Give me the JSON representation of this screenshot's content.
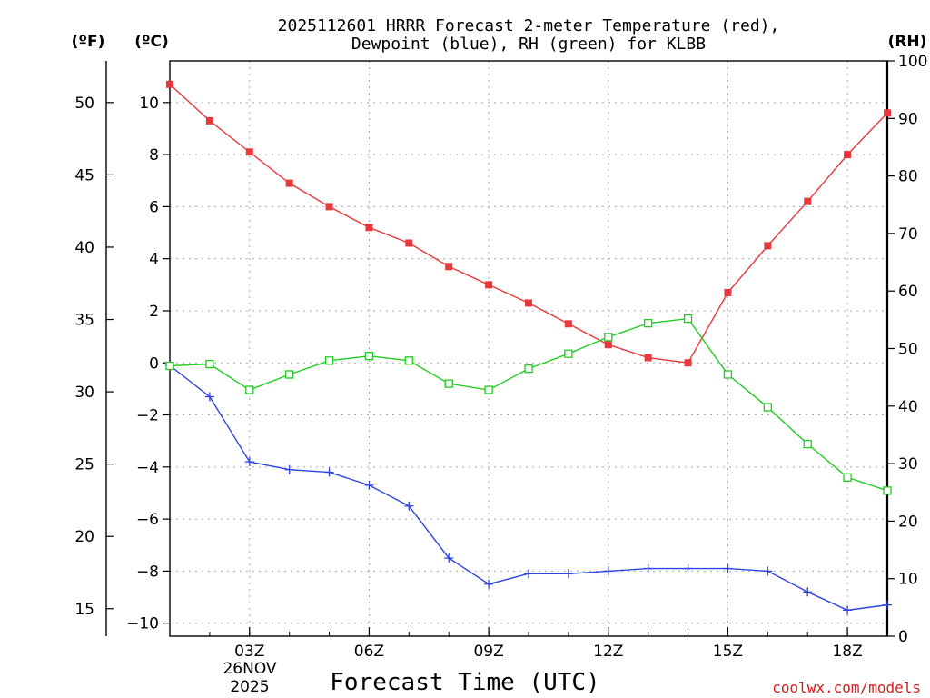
{
  "chart_data": {
    "type": "line",
    "title_line1": "2025112601 HRRR Forecast 2-meter Temperature (red),",
    "title_line2": "Dewpoint (blue), RH (green) for KLBB",
    "units": {
      "fahrenheit": "(ºF)",
      "celsius": "(ºC)",
      "rh": "(RH)"
    },
    "xlabel": "Forecast Time (UTC)",
    "credit": "coolwx.com/models",
    "x_hours": [
      1,
      2,
      3,
      4,
      5,
      6,
      7,
      8,
      9,
      10,
      11,
      12,
      13,
      14,
      15,
      16,
      17,
      18,
      19
    ],
    "x_range": [
      1,
      19
    ],
    "x_ticks": [
      {
        "hour": 3,
        "label": "03Z"
      },
      {
        "hour": 6,
        "label": "06Z"
      },
      {
        "hour": 9,
        "label": "09Z"
      },
      {
        "hour": 12,
        "label": "12Z"
      },
      {
        "hour": 15,
        "label": "15Z"
      },
      {
        "hour": 18,
        "label": "18Z"
      }
    ],
    "date_label": [
      "26NOV",
      "2025"
    ],
    "celsius_axis": {
      "range": [
        -10.5,
        11.6
      ],
      "ticks": [
        -10,
        -8,
        -6,
        -4,
        -2,
        0,
        2,
        4,
        6,
        8,
        10
      ]
    },
    "fahrenheit_axis": {
      "ticks": [
        15,
        20,
        25,
        30,
        35,
        40,
        45,
        50
      ]
    },
    "rh_axis": {
      "range": [
        0,
        100
      ],
      "ticks": [
        0,
        10,
        20,
        30,
        40,
        50,
        60,
        70,
        80,
        90,
        100
      ]
    },
    "series": [
      {
        "name": "2-meter Temperature",
        "axis": "celsius",
        "color": "#e8383c",
        "marker": "filled-square",
        "values": [
          10.7,
          9.3,
          8.1,
          6.9,
          6.0,
          5.2,
          4.6,
          3.7,
          3.0,
          2.3,
          1.5,
          0.7,
          0.2,
          0.0,
          2.7,
          4.5,
          6.2,
          8.0,
          9.6
        ]
      },
      {
        "name": "Dewpoint",
        "axis": "celsius",
        "color": "#3044e0",
        "marker": "plus",
        "values": [
          -0.1,
          -1.3,
          -3.8,
          -4.1,
          -4.2,
          -4.7,
          -5.5,
          -7.5,
          -8.5,
          -8.1,
          -8.1,
          -8.0,
          -7.9,
          -7.9,
          -7.9,
          -8.0,
          -8.8,
          -9.5,
          -9.3
        ]
      },
      {
        "name": "Relative Humidity",
        "axis": "rh",
        "color": "#22cc22",
        "marker": "open-square",
        "values": [
          47.0,
          47.3,
          42.8,
          45.5,
          47.9,
          48.7,
          47.9,
          43.9,
          42.8,
          46.5,
          49.1,
          52.0,
          54.4,
          55.2,
          45.5,
          39.8,
          33.4,
          27.6,
          25.3
        ]
      }
    ]
  }
}
